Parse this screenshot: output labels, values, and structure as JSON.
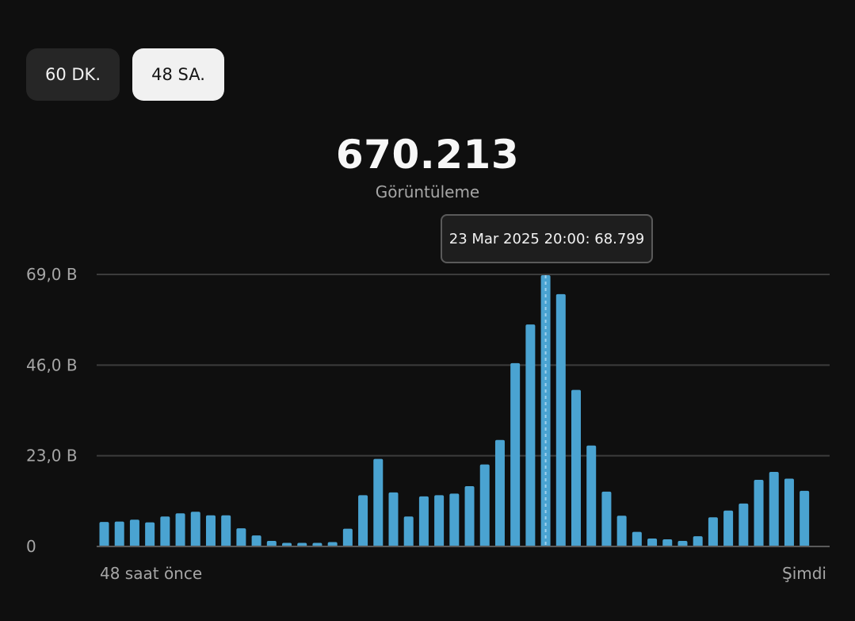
{
  "tabs": [
    {
      "label": "60 DK.",
      "selected": false
    },
    {
      "label": "48 SA.",
      "selected": true
    }
  ],
  "summary": {
    "total": "670.213",
    "label": "Görüntüleme"
  },
  "tooltip": {
    "text": "23 Mar 2025 20:00: 68.799"
  },
  "colors": {
    "bar": "#4aa3d1",
    "background": "#0f0f0f",
    "grid": "#3c3c3c"
  },
  "chart_data": {
    "type": "bar",
    "x_start_label": "48 saat önce",
    "x_end_label": "Şimdi",
    "ylim": [
      0,
      69000
    ],
    "yticks": [
      {
        "value": 0,
        "label": "0"
      },
      {
        "value": 23000,
        "label": "23,0 B"
      },
      {
        "value": 46000,
        "label": "46,0 B"
      },
      {
        "value": 69000,
        "label": "69,0 B"
      }
    ],
    "grid": true,
    "highlight_index": 29,
    "values": [
      6200,
      6300,
      6800,
      6100,
      7600,
      8400,
      8800,
      7900,
      7900,
      4600,
      2800,
      1400,
      900,
      900,
      900,
      1100,
      4500,
      13000,
      22200,
      13700,
      7600,
      12700,
      13000,
      13400,
      15300,
      20800,
      27000,
      46500,
      56300,
      68799,
      64000,
      39700,
      25600,
      13900,
      7800,
      3700,
      2000,
      1800,
      1400,
      2600,
      7400,
      9100,
      10900,
      16900,
      18900,
      17200,
      14100
    ]
  }
}
